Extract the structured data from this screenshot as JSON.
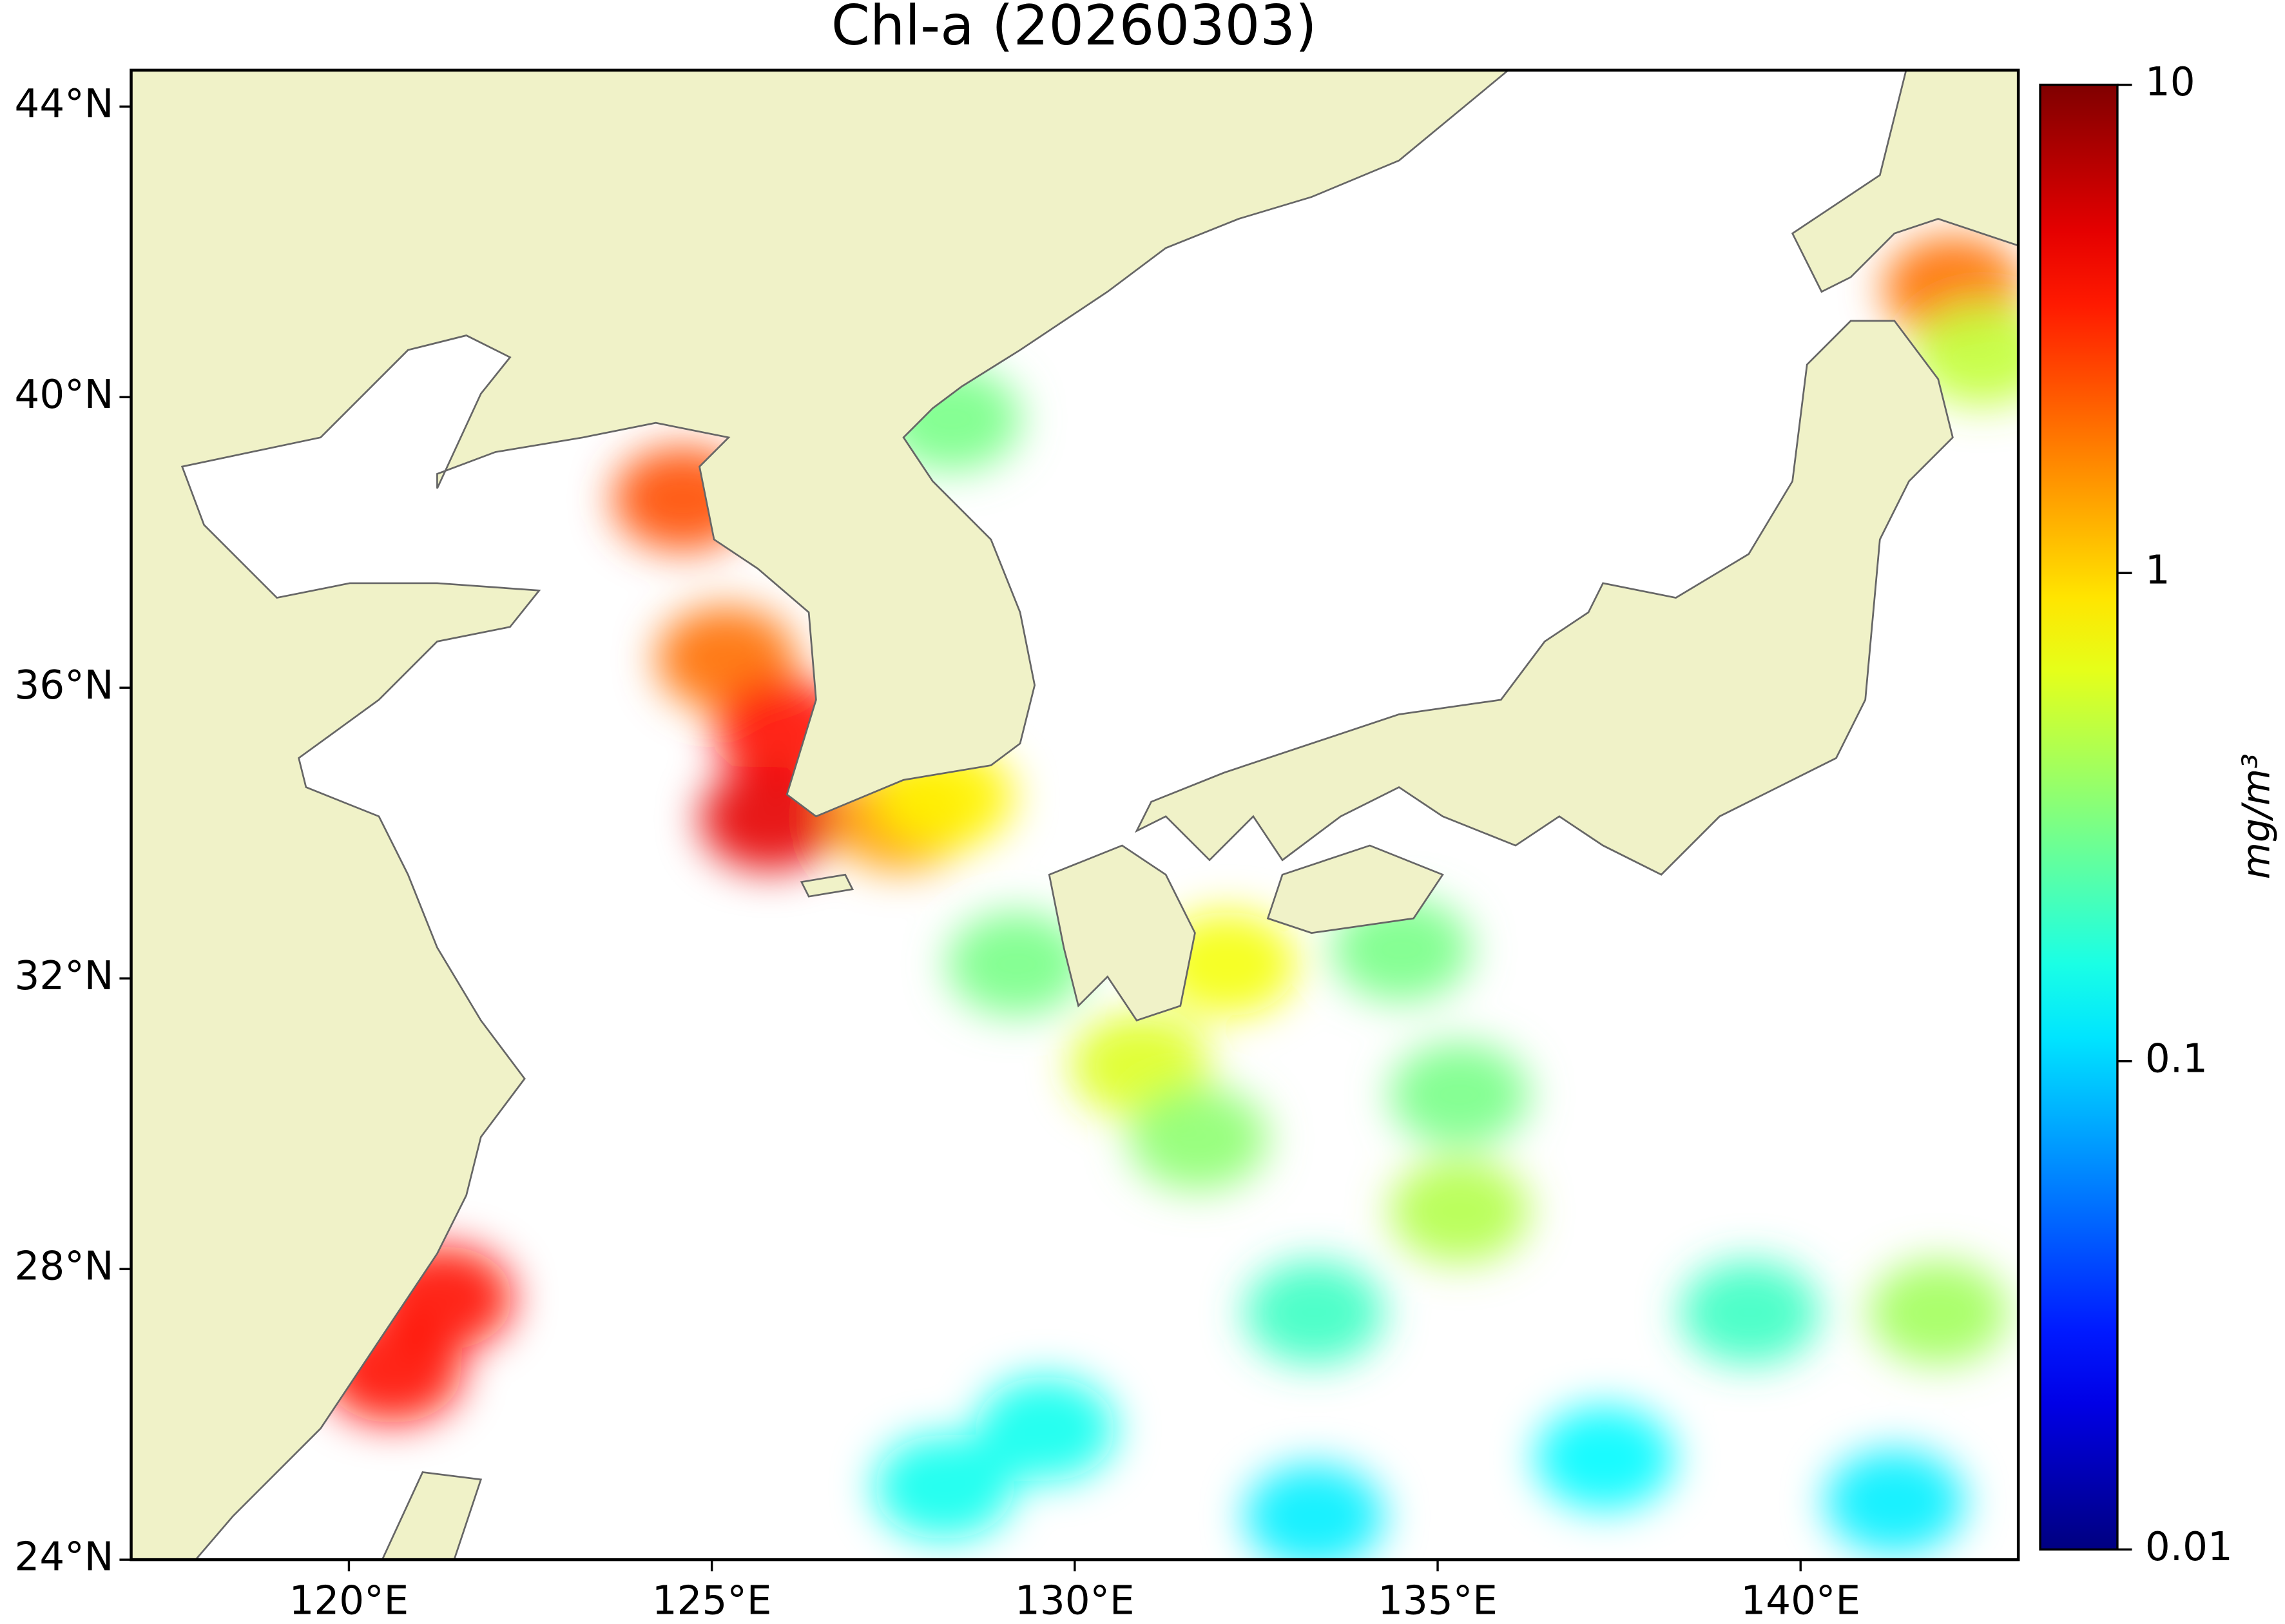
{
  "chart_data": {
    "type": "map",
    "title": "Chl-a (20260303)",
    "xlim": [
      117,
      143
    ],
    "ylim": [
      24,
      44.5
    ],
    "xticks": [
      {
        "value": 120,
        "label": "120°E"
      },
      {
        "value": 125,
        "label": "125°E"
      },
      {
        "value": 130,
        "label": "130°E"
      },
      {
        "value": 135,
        "label": "135°E"
      },
      {
        "value": 140,
        "label": "140°E"
      }
    ],
    "yticks": [
      {
        "value": 24,
        "label": "24°N"
      },
      {
        "value": 28,
        "label": "28°N"
      },
      {
        "value": 32,
        "label": "32°N"
      },
      {
        "value": 36,
        "label": "36°N"
      },
      {
        "value": 40,
        "label": "40°N"
      },
      {
        "value": 44,
        "label": "44°N"
      }
    ],
    "land_color": "#f0f2c8",
    "colorbar": {
      "label": "mg/m³",
      "lim": [
        0.01,
        10
      ],
      "ticks": [
        0.01,
        0.1,
        1,
        10
      ],
      "log": true,
      "colormap": "jet"
    },
    "samples": [
      {
        "lon": 124.6,
        "lat": 38.6,
        "value": 2.5
      },
      {
        "lon": 125.2,
        "lat": 36.4,
        "value": 2
      },
      {
        "lon": 126.0,
        "lat": 35.4,
        "value": 4
      },
      {
        "lon": 125.8,
        "lat": 34.2,
        "value": 5
      },
      {
        "lon": 127.6,
        "lat": 34.2,
        "value": 1.5
      },
      {
        "lon": 128.2,
        "lat": 34.5,
        "value": 0.8
      },
      {
        "lon": 121.3,
        "lat": 27.6,
        "value": 4
      },
      {
        "lon": 120.6,
        "lat": 26.6,
        "value": 4
      },
      {
        "lon": 142.1,
        "lat": 41.5,
        "value": 2
      },
      {
        "lon": 142.5,
        "lat": 40.6,
        "value": 0.5
      },
      {
        "lon": 128.3,
        "lat": 39.7,
        "value": 0.3
      },
      {
        "lon": 130.9,
        "lat": 30.8,
        "value": 0.6
      },
      {
        "lon": 132.1,
        "lat": 32.2,
        "value": 0.7
      },
      {
        "lon": 131.7,
        "lat": 29.8,
        "value": 0.35
      },
      {
        "lon": 134.5,
        "lat": 32.4,
        "value": 0.3
      },
      {
        "lon": 135.3,
        "lat": 30.4,
        "value": 0.3
      },
      {
        "lon": 135.3,
        "lat": 28.8,
        "value": 0.45
      },
      {
        "lon": 133.3,
        "lat": 27.4,
        "value": 0.2
      },
      {
        "lon": 129.6,
        "lat": 25.8,
        "value": 0.15
      },
      {
        "lon": 128.2,
        "lat": 25.0,
        "value": 0.15
      },
      {
        "lon": 133.3,
        "lat": 24.6,
        "value": 0.12
      },
      {
        "lon": 137.3,
        "lat": 25.4,
        "value": 0.13
      },
      {
        "lon": 141.3,
        "lat": 24.8,
        "value": 0.12
      },
      {
        "lon": 141.9,
        "lat": 27.4,
        "value": 0.4
      },
      {
        "lon": 139.3,
        "lat": 27.4,
        "value": 0.2
      },
      {
        "lon": 129.2,
        "lat": 32.2,
        "value": 0.3
      }
    ]
  }
}
